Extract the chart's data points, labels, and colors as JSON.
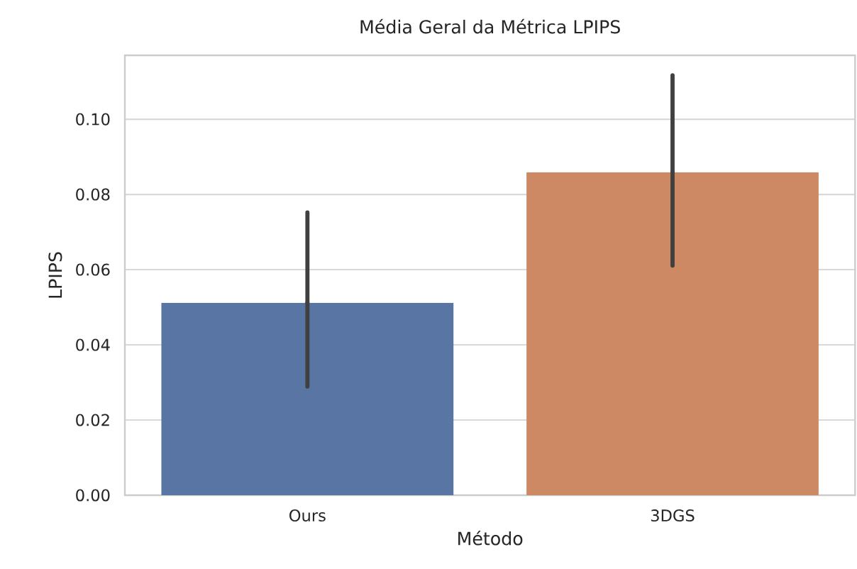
{
  "chart_data": {
    "type": "bar",
    "title": "Média Geral da Métrica LPIPS",
    "xlabel": "Método",
    "ylabel": "LPIPS",
    "categories": [
      "Ours",
      "3DGS"
    ],
    "values": [
      0.0512,
      0.0859
    ],
    "colors": [
      "#5875a4",
      "#cc8963"
    ],
    "errors": [
      [
        0.0289,
        0.0752
      ],
      [
        0.0611,
        0.1117
      ]
    ],
    "ylim": [
      0,
      0.117
    ],
    "yticks": [
      {
        "value": 0,
        "label": "0.00"
      },
      {
        "value": 0.02,
        "label": "0.02"
      },
      {
        "value": 0.04,
        "label": "0.04"
      },
      {
        "value": 0.06,
        "label": "0.06"
      },
      {
        "value": 0.08,
        "label": "0.08"
      },
      {
        "value": 0.1,
        "label": "0.10"
      }
    ],
    "grid": "y"
  }
}
